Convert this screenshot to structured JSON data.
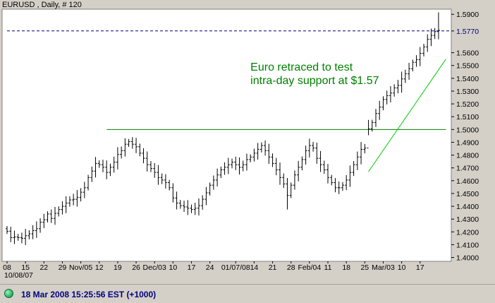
{
  "window": {
    "title": "EURUSD , Daily, # 120"
  },
  "status": {
    "timestamp": "18 Mar 2008 15:25:56",
    "timezone": "EST (+1000)"
  },
  "colors": {
    "background": "#ffffff",
    "frame": "#d4d0c8",
    "bars": "#000000",
    "support_line": "#008000",
    "trend_line": "#00cc00",
    "dashed_line": "#000080",
    "annotation": "#008000",
    "status_text": "#000080"
  },
  "chart_data": {
    "type": "ohlc",
    "symbol": "EURUSD",
    "timeframe": "Daily",
    "ylim": [
      1.397,
      1.594
    ],
    "y_ticks": [
      "1.5900",
      "1.5770",
      "1.5600",
      "1.5500",
      "1.5400",
      "1.5300",
      "1.5200",
      "1.5100",
      "1.5000",
      "1.4900",
      "1.4800",
      "1.4700",
      "1.4600",
      "1.4500",
      "1.4400",
      "1.4300",
      "1.4200",
      "1.4100",
      "1.4000"
    ],
    "y_tick_values": [
      1.59,
      1.577,
      1.56,
      1.55,
      1.54,
      1.53,
      1.52,
      1.51,
      1.5,
      1.49,
      1.48,
      1.47,
      1.46,
      1.45,
      1.44,
      1.43,
      1.42,
      1.41,
      1.4
    ],
    "x_tick_labels": [
      "08",
      "15",
      "22",
      "29",
      "Nov/05",
      "12",
      "19",
      "26",
      "Dec/03",
      "10",
      "17",
      "24",
      "01/07/08",
      "14",
      "21",
      "28",
      "Feb/04",
      "11",
      "18",
      "25",
      "Mar/03",
      "10",
      "17"
    ],
    "x_tick_bar_index": [
      0,
      5,
      10,
      15,
      20,
      25,
      30,
      35,
      40,
      45,
      50,
      55,
      62,
      67,
      72,
      77,
      82,
      87,
      92,
      97,
      102,
      107,
      112
    ],
    "x_sub_labels": [
      {
        "text": "10/08/07",
        "bar": 0
      },
      {
        "text": "Nov/05",
        "bar": 20
      },
      {
        "text": "Dec/03",
        "bar": 40
      },
      {
        "text": "01/07/08",
        "bar": 62
      },
      {
        "text": "Feb/04",
        "bar": 82
      },
      {
        "text": "Mar/03",
        "bar": 102
      }
    ],
    "highlighted_level": {
      "value": 1.577,
      "label": "1.5770",
      "style": "dashed"
    },
    "support_line": {
      "value": 1.5,
      "from_bar": 27,
      "to_bar": 119
    },
    "trend_line": {
      "from": {
        "bar": 98,
        "value": 1.467
      },
      "to": {
        "bar": 119,
        "value": 1.555
      }
    },
    "annotation": {
      "lines": [
        "Euro retraced to test",
        "intra-day support at $1.57"
      ],
      "anchor_bar": 66,
      "anchor_value": 1.546
    },
    "close": [
      1.4205,
      1.4155,
      1.416,
      1.4155,
      1.415,
      1.417,
      1.4185,
      1.421,
      1.4225,
      1.4275,
      1.4295,
      1.434,
      1.4305,
      1.4345,
      1.4375,
      1.44,
      1.4425,
      1.445,
      1.4455,
      1.447,
      1.451,
      1.4545,
      1.4625,
      1.4675,
      1.4735,
      1.4725,
      1.4705,
      1.4665,
      1.4705,
      1.4745,
      1.4805,
      1.4835,
      1.4885,
      1.4905,
      1.4885,
      1.4865,
      1.4815,
      1.4775,
      1.4725,
      1.4695,
      1.4665,
      1.4625,
      1.4605,
      1.4585,
      1.4545,
      1.4465,
      1.4425,
      1.4405,
      1.4395,
      1.4385,
      1.4375,
      1.4385,
      1.4405,
      1.4455,
      1.4505,
      1.4565,
      1.4605,
      1.4645,
      1.4685,
      1.4705,
      1.4725,
      1.4745,
      1.4725,
      1.4705,
      1.4725,
      1.4765,
      1.4785,
      1.4815,
      1.4845,
      1.4875,
      1.4835,
      1.4785,
      1.4735,
      1.4685,
      1.4625,
      1.4575,
      1.4485,
      1.4565,
      1.4645,
      1.4705,
      1.4765,
      1.4835,
      1.4875,
      1.4855,
      1.4775,
      1.4725,
      1.4685,
      1.4625,
      1.4585,
      1.4545,
      1.4545,
      1.4565,
      1.4605,
      1.4665,
      1.4725,
      1.4785,
      1.4845,
      1.4855,
      1.5005,
      1.5055,
      1.5125,
      1.5175,
      1.5235,
      1.5265,
      1.5285,
      1.5325,
      1.5345,
      1.5395,
      1.5435,
      1.5475,
      1.5525,
      1.5545,
      1.5595,
      1.5645,
      1.5705,
      1.5735,
      1.5765,
      1.5775
    ]
  }
}
